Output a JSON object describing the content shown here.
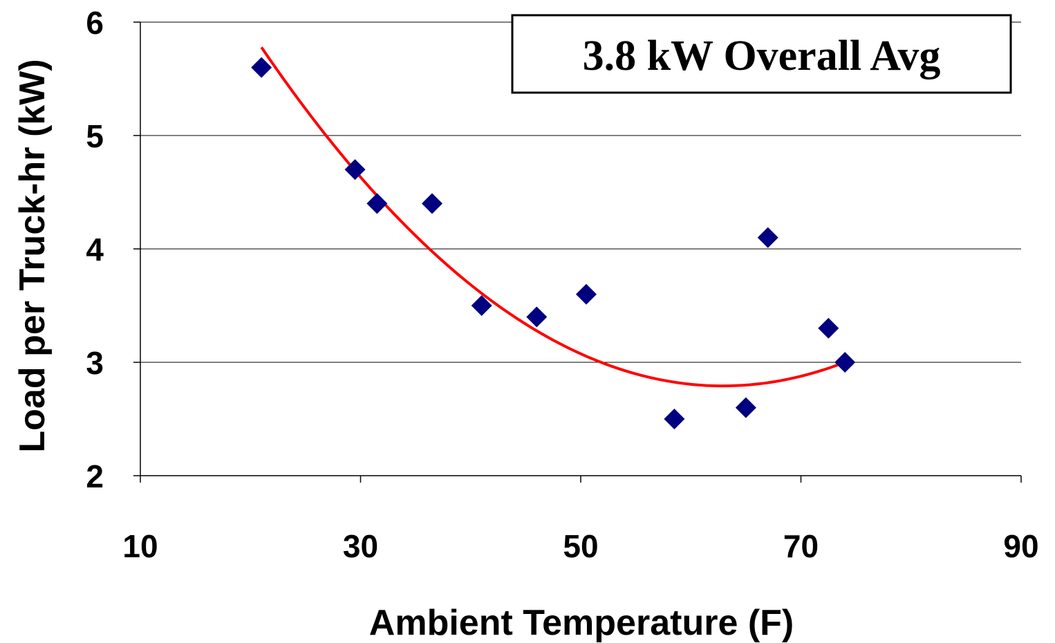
{
  "chart_data": {
    "type": "scatter",
    "xlabel": "Ambient Temperature (F)",
    "ylabel": "Load per Truck-hr (kW)",
    "xlim": [
      10,
      90
    ],
    "ylim": [
      2,
      6
    ],
    "x_ticks": [
      10,
      30,
      50,
      70,
      90
    ],
    "y_ticks": [
      2,
      3,
      4,
      5,
      6
    ],
    "grid": "horizontal",
    "annotation": "3.8 kW Overall Avg",
    "annotation_position": "top-right",
    "series": [
      {
        "marker": "diamond",
        "color": "#000080",
        "points": [
          {
            "x": 21,
            "y": 5.6
          },
          {
            "x": 29.5,
            "y": 4.7
          },
          {
            "x": 31.5,
            "y": 4.4
          },
          {
            "x": 36.5,
            "y": 4.4
          },
          {
            "x": 41,
            "y": 3.5
          },
          {
            "x": 46,
            "y": 3.4
          },
          {
            "x": 50.5,
            "y": 3.6
          },
          {
            "x": 58.5,
            "y": 2.5
          },
          {
            "x": 65,
            "y": 2.6
          },
          {
            "x": 67,
            "y": 4.1
          },
          {
            "x": 72.5,
            "y": 3.3
          },
          {
            "x": 74,
            "y": 3.0
          }
        ]
      }
    ],
    "trendline": {
      "type": "polynomial",
      "color": "#ff0000",
      "x_range": [
        21,
        74
      ],
      "coefficients": [
        9.52,
        -0.2139,
        0.0017
      ]
    }
  }
}
